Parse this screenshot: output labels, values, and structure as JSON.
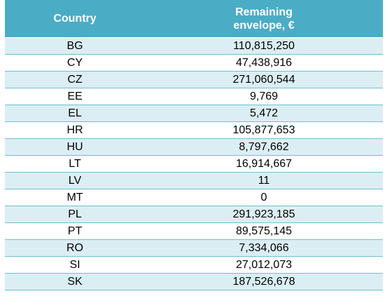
{
  "table": {
    "headers": {
      "country": "Country",
      "envelope_line1": "Remaining",
      "envelope_line2": "envelope, €"
    },
    "rows": [
      {
        "country": "BG",
        "value": "110,815,250"
      },
      {
        "country": "CY",
        "value": "47,438,916"
      },
      {
        "country": "CZ",
        "value": "271,060,544"
      },
      {
        "country": "EE",
        "value": "9,769"
      },
      {
        "country": "EL",
        "value": "5,472"
      },
      {
        "country": "HR",
        "value": "105,877,653"
      },
      {
        "country": "HU",
        "value": "8,797,662"
      },
      {
        "country": "LT",
        "value": "16,914,667"
      },
      {
        "country": "LV",
        "value": "11"
      },
      {
        "country": "MT",
        "value": "0"
      },
      {
        "country": "PL",
        "value": "291,923,185"
      },
      {
        "country": "PT",
        "value": "89,575,145"
      },
      {
        "country": "RO",
        "value": "7,334,066"
      },
      {
        "country": "SI",
        "value": "27,012,073"
      },
      {
        "country": "SK",
        "value": "187,526,678"
      }
    ]
  },
  "colors": {
    "header_bg": "#4bacc6",
    "band_bg": "#dbeef3",
    "rule": "#6fbfd6"
  }
}
